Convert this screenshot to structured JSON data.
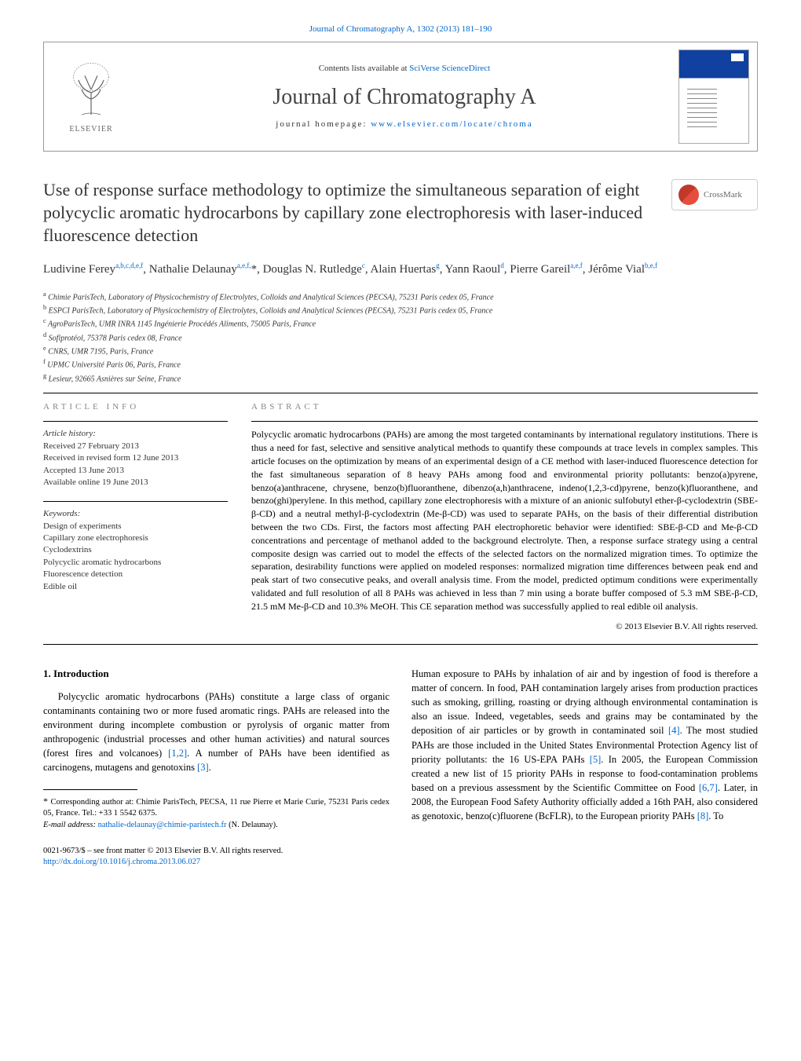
{
  "top_link": "Journal of Chromatography A, 1302 (2013) 181–190",
  "header": {
    "contents_prefix": "Contents lists available at ",
    "contents_link": "SciVerse ScienceDirect",
    "journal_name": "Journal of Chromatography A",
    "homepage_prefix": "journal homepage: ",
    "homepage_link": "www.elsevier.com/locate/chroma",
    "publisher_name": "ELSEVIER"
  },
  "title": "Use of response surface methodology to optimize the simultaneous separation of eight polycyclic aromatic hydrocarbons by capillary zone electrophoresis with laser-induced fluorescence detection",
  "crossmark_label": "CrossMark",
  "authors_html": "Ludivine Ferey<sup>a,b,c,d,e,f</sup>, Nathalie Delaunay<sup>a,e,f,</sup><span class='ast'>*</span>, Douglas N. Rutledge<sup>c</sup>, Alain Huertas<sup>g</sup>, Yann Raoul<sup>d</sup>, Pierre Gareil<sup>a,e,f</sup>, Jérôme Vial<sup>b,e,f</sup>",
  "affiliations": [
    {
      "sup": "a",
      "text": "Chimie ParisTech, Laboratory of Physicochemistry of Electrolytes, Colloids and Analytical Sciences (PECSA), 75231 Paris cedex 05, France"
    },
    {
      "sup": "b",
      "text": "ESPCI ParisTech, Laboratory of Physicochemistry of Electrolytes, Colloids and Analytical Sciences (PECSA), 75231 Paris cedex 05, France"
    },
    {
      "sup": "c",
      "text": "AgroParisTech, UMR INRA 1145 Ingénierie Procédés Aliments, 75005 Paris, France"
    },
    {
      "sup": "d",
      "text": "Sofiprotéol, 75378 Paris cedex 08, France"
    },
    {
      "sup": "e",
      "text": "CNRS, UMR 7195, Paris, France"
    },
    {
      "sup": "f",
      "text": "UPMC Université Paris 06, Paris, France"
    },
    {
      "sup": "g",
      "text": "Lesieur, 92665 Asnières sur Seine, France"
    }
  ],
  "article_info": {
    "label": "ARTICLE INFO",
    "history_heading": "Article history:",
    "history": [
      "Received 27 February 2013",
      "Received in revised form 12 June 2013",
      "Accepted 13 June 2013",
      "Available online 19 June 2013"
    ],
    "keywords_heading": "Keywords:",
    "keywords": [
      "Design of experiments",
      "Capillary zone electrophoresis",
      "Cyclodextrins",
      "Polycyclic aromatic hydrocarbons",
      "Fluorescence detection",
      "Edible oil"
    ]
  },
  "abstract": {
    "label": "ABSTRACT",
    "text": "Polycyclic aromatic hydrocarbons (PAHs) are among the most targeted contaminants by international regulatory institutions. There is thus a need for fast, selective and sensitive analytical methods to quantify these compounds at trace levels in complex samples. This article focuses on the optimization by means of an experimental design of a CE method with laser-induced fluorescence detection for the fast simultaneous separation of 8 heavy PAHs among food and environmental priority pollutants: benzo(a)pyrene, benzo(a)anthracene, chrysene, benzo(b)fluoranthene, dibenzo(a,h)anthracene, indeno(1,2,3-cd)pyrene, benzo(k)fluoranthene, and benzo(ghi)perylene. In this method, capillary zone electrophoresis with a mixture of an anionic sulfobutyl ether-β-cyclodextrin (SBE-β-CD) and a neutral methyl-β-cyclodextrin (Me-β-CD) was used to separate PAHs, on the basis of their differential distribution between the two CDs. First, the factors most affecting PAH electrophoretic behavior were identified: SBE-β-CD and Me-β-CD concentrations and percentage of methanol added to the background electrolyte. Then, a response surface strategy using a central composite design was carried out to model the effects of the selected factors on the normalized migration times. To optimize the separation, desirability functions were applied on modeled responses: normalized migration time differences between peak end and peak start of two consecutive peaks, and overall analysis time. From the model, predicted optimum conditions were experimentally validated and full resolution of all 8 PAHs was achieved in less than 7 min using a borate buffer composed of 5.3 mM SBE-β-CD, 21.5 mM Me-β-CD and 10.3% MeOH. This CE separation method was successfully applied to real edible oil analysis.",
    "copyright": "© 2013 Elsevier B.V. All rights reserved."
  },
  "intro": {
    "heading": "1.  Introduction",
    "para1": "Polycyclic aromatic hydrocarbons (PAHs) constitute a large class of organic contaminants containing two or more fused aromatic rings. PAHs are released into the environment during incomplete combustion or pyrolysis of organic matter from anthropogenic (industrial processes and other human activities) and natural sources (forest fires and volcanoes) ",
    "ref1": "[1,2]",
    "para1b": ". A number of PAHs have been identified as carcinogens, mutagens and genotoxins ",
    "ref2": "[3]",
    "para1c": ".",
    "para2a": "Human exposure to PAHs by inhalation of air and by ingestion of food is therefore a matter of concern. In food, PAH contamination largely arises from production practices such as smoking, grilling, roasting or drying although environmental contamination is also an issue. Indeed, vegetables, seeds and grains may be contaminated by the deposition of air particles or by growth in contaminated soil ",
    "ref3": "[4]",
    "para2b": ". The most studied PAHs are those included in the United States Environmental Protection Agency list of priority pollutants: the 16 US-EPA PAHs ",
    "ref4": "[5]",
    "para2c": ". In 2005, the European Commission created a new list of 15 priority PAHs in response to food-contamination problems based on a previous assessment by the Scientific Committee on Food ",
    "ref5": "[6,7]",
    "para2d": ". Later, in 2008, the European Food Safety Authority officially added a 16th PAH, also considered as genotoxic, benzo(c)fluorene (BcFLR), to the European priority PAHs ",
    "ref6": "[8]",
    "para2e": ". To"
  },
  "footnote": {
    "corr_label": "Corresponding author at: Chimie ParisTech, PECSA, 11 rue Pierre et Marie Curie, 75231 Paris cedex 05, France. Tel.: +33 1 5542 6375.",
    "email_label": "E-mail address: ",
    "email": "nathalie-delaunay@chimie-paristech.fr",
    "email_suffix": " (N. Delaunay)."
  },
  "bottom": {
    "line1": "0021-9673/$ – see front matter © 2013 Elsevier B.V. All rights reserved.",
    "doi": "http://dx.doi.org/10.1016/j.chroma.2013.06.027"
  },
  "colors": {
    "link": "#0066cc",
    "text": "#000000",
    "muted": "#888888"
  }
}
